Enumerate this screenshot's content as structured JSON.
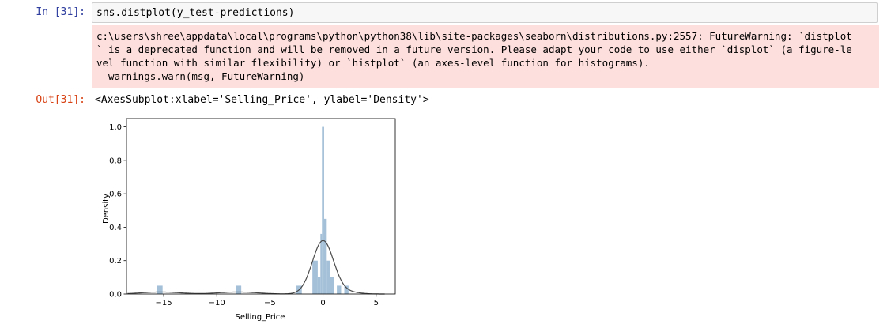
{
  "input_cell": {
    "prompt": "In [31]:",
    "code": "sns.distplot(y_test-predictions)"
  },
  "stderr_lines": [
    "c:\\users\\shree\\appdata\\local\\programs\\python\\python38\\lib\\site-packages\\seaborn\\distributions.py:2557: FutureWarning: `distplot",
    "` is a deprecated function and will be removed in a future version. Please adapt your code to use either `displot` (a figure-le",
    "vel function with similar flexibility) or `histplot` (an axes-level function for histograms).",
    "  warnings.warn(msg, FutureWarning)"
  ],
  "output_cell": {
    "prompt": "Out[31]:",
    "repr": "<AxesSubplot:xlabel='Selling_Price', ylabel='Density'>"
  },
  "colors": {
    "bar": "#a4c0d8",
    "kde": "#4a4a4a",
    "stderr_bg": "#fddfdd",
    "in_prompt": "#303f9f",
    "out_prompt": "#d84315"
  },
  "chart_data": {
    "type": "histogram",
    "xlabel": "Selling_Price",
    "ylabel": "Density",
    "xlim": [
      -18.5,
      6.8
    ],
    "ylim": [
      0,
      1.05
    ],
    "xticks": [
      -15,
      -10,
      -5,
      0,
      5
    ],
    "xtick_labels": [
      "−15",
      "−10",
      "−5",
      "0",
      "5"
    ],
    "yticks": [
      0.0,
      0.2,
      0.4,
      0.6,
      0.8,
      1.0
    ],
    "ytick_labels": [
      "0.0",
      "0.2",
      "0.4",
      "0.6",
      "0.8",
      "1.0"
    ],
    "bins": [
      {
        "x0": -15.6,
        "x1": -15.1,
        "height": 0.05
      },
      {
        "x0": -8.2,
        "x1": -7.7,
        "height": 0.05
      },
      {
        "x0": -2.5,
        "x1": -2.0,
        "height": 0.05
      },
      {
        "x0": -1.0,
        "x1": -0.5,
        "height": 0.2
      },
      {
        "x0": -0.5,
        "x1": -0.25,
        "height": 0.1
      },
      {
        "x0": -0.25,
        "x1": -0.1,
        "height": 0.36
      },
      {
        "x0": -0.1,
        "x1": 0.1,
        "height": 1.0
      },
      {
        "x0": 0.1,
        "x1": 0.35,
        "height": 0.45
      },
      {
        "x0": 0.35,
        "x1": 0.65,
        "height": 0.2
      },
      {
        "x0": 0.65,
        "x1": 1.0,
        "height": 0.1
      },
      {
        "x0": 1.3,
        "x1": 1.7,
        "height": 0.05
      },
      {
        "x0": 2.0,
        "x1": 2.4,
        "height": 0.05
      }
    ],
    "kde": {
      "peak_x": 0.0,
      "peak_y": 0.32,
      "sigma": 1.0,
      "bumps": [
        {
          "x": -15.3,
          "y": 0.012,
          "sigma": 1.8
        },
        {
          "x": -8.0,
          "y": 0.012,
          "sigma": 1.8
        },
        {
          "x": 2.5,
          "y": 0.01,
          "sigma": 1.0
        }
      ],
      "range": [
        -18.4,
        5.8
      ]
    }
  }
}
